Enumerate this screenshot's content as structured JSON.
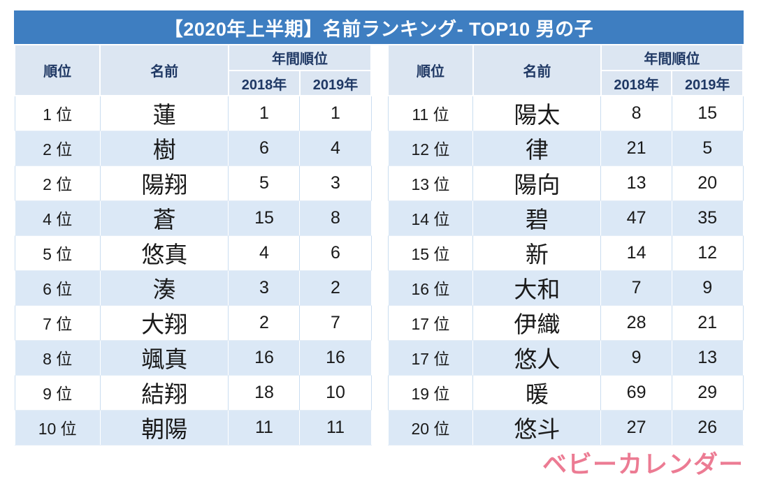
{
  "title": "【2020年上半期】名前ランキング- TOP10 男の子",
  "columns": {
    "rank": "順位",
    "name": "名前",
    "annual": "年間順位",
    "y2018": "2018年",
    "y2019": "2019年"
  },
  "rank_suffix": "位",
  "logo_text": "ベビーカレンダー",
  "colors": {
    "title_bg": "#3e7ec1",
    "header_bg": "#dce6f2",
    "header_text": "#1f3864",
    "stripe_row": "#dbe8f6",
    "logo_pink": "#ec7b93"
  },
  "chart_data": {
    "type": "table",
    "title": "【2020年上半期】名前ランキング- TOP10 男の子",
    "columns": [
      "順位",
      "名前",
      "年間順位 2018年",
      "年間順位 2019年"
    ],
    "rows": [
      {
        "rank": "1",
        "name": "蓮",
        "y2018": "1",
        "y2019": "1"
      },
      {
        "rank": "2",
        "name": "樹",
        "y2018": "6",
        "y2019": "4"
      },
      {
        "rank": "2",
        "name": "陽翔",
        "y2018": "5",
        "y2019": "3"
      },
      {
        "rank": "4",
        "name": "蒼",
        "y2018": "15",
        "y2019": "8"
      },
      {
        "rank": "5",
        "name": "悠真",
        "y2018": "4",
        "y2019": "6"
      },
      {
        "rank": "6",
        "name": "湊",
        "y2018": "3",
        "y2019": "2"
      },
      {
        "rank": "7",
        "name": "大翔",
        "y2018": "2",
        "y2019": "7"
      },
      {
        "rank": "8",
        "name": "颯真",
        "y2018": "16",
        "y2019": "16"
      },
      {
        "rank": "9",
        "name": "結翔",
        "y2018": "18",
        "y2019": "10"
      },
      {
        "rank": "10",
        "name": "朝陽",
        "y2018": "11",
        "y2019": "11"
      },
      {
        "rank": "11",
        "name": "陽太",
        "y2018": "8",
        "y2019": "15"
      },
      {
        "rank": "12",
        "name": "律",
        "y2018": "21",
        "y2019": "5"
      },
      {
        "rank": "13",
        "name": "陽向",
        "y2018": "13",
        "y2019": "20"
      },
      {
        "rank": "14",
        "name": "碧",
        "y2018": "47",
        "y2019": "35"
      },
      {
        "rank": "15",
        "name": "新",
        "y2018": "14",
        "y2019": "12"
      },
      {
        "rank": "16",
        "name": "大和",
        "y2018": "7",
        "y2019": "9"
      },
      {
        "rank": "17",
        "name": "伊織",
        "y2018": "28",
        "y2019": "21"
      },
      {
        "rank": "17",
        "name": "悠人",
        "y2018": "9",
        "y2019": "13"
      },
      {
        "rank": "19",
        "name": "暖",
        "y2018": "69",
        "y2019": "29"
      },
      {
        "rank": "20",
        "name": "悠斗",
        "y2018": "27",
        "y2019": "26"
      }
    ]
  }
}
